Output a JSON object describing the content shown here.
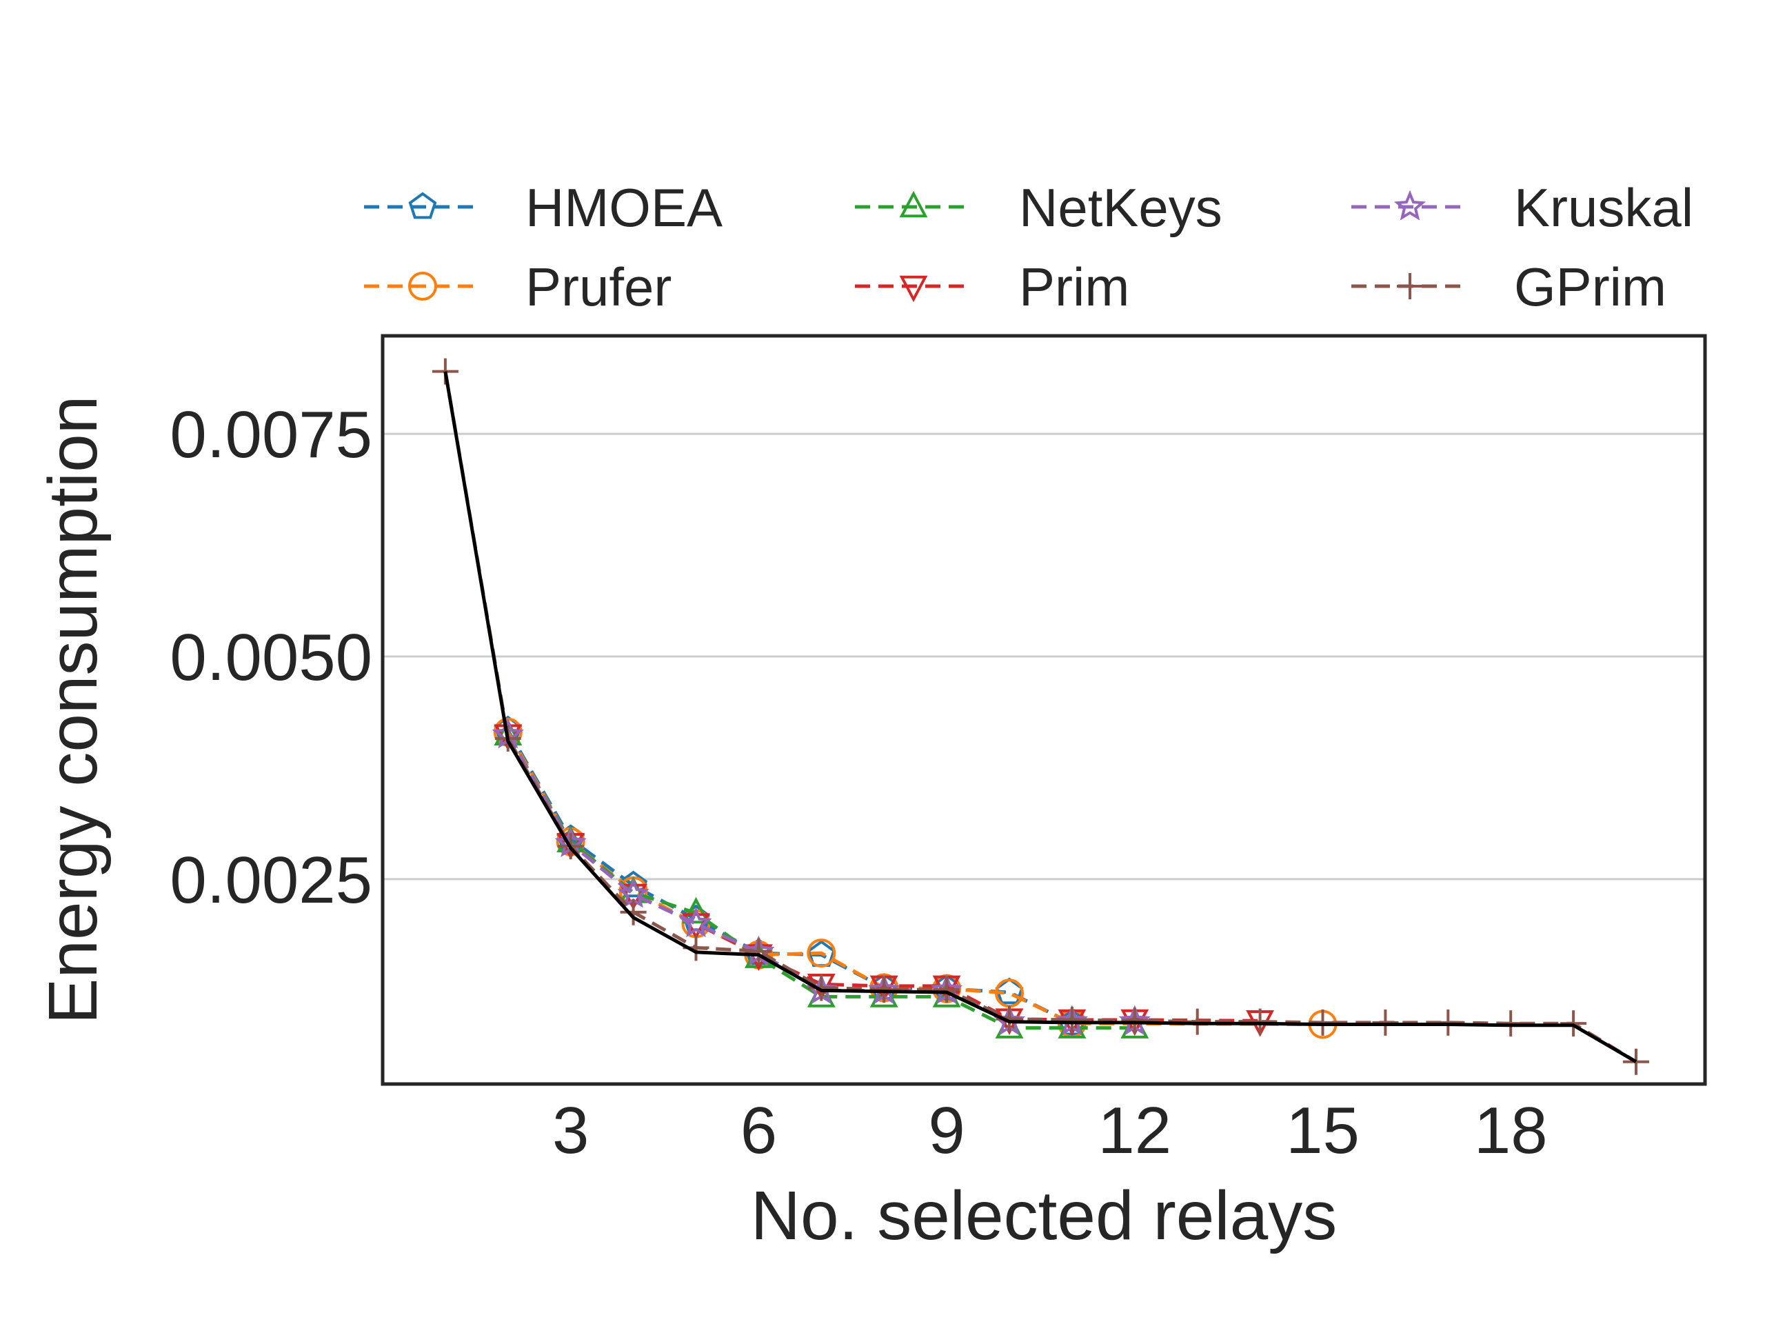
{
  "chart_data": {
    "type": "line",
    "xlabel": "No. selected relays",
    "ylabel": "Energy consumption",
    "xlim": [
      0.0,
      21.1
    ],
    "ylim": [
      0.0002,
      0.0086
    ],
    "xticks": [
      3,
      6,
      9,
      12,
      15,
      18
    ],
    "xtick_labels": [
      "3",
      "6",
      "9",
      "12",
      "15",
      "18"
    ],
    "yticks": [
      0.0025,
      0.005,
      0.0075
    ],
    "ytick_labels": [
      "0.0025",
      "0.0050",
      "0.0075"
    ],
    "grid": "horizontal",
    "legend": {
      "position": "top",
      "columns": 3
    },
    "series": [
      {
        "name": "HMOEA",
        "color": "#1f77b4",
        "marker": "pentagon",
        "dash": true,
        "x": [
          2,
          3,
          4,
          5,
          6,
          7,
          8,
          9,
          10,
          11
        ],
        "y": [
          0.00417,
          0.00295,
          0.00243,
          0.00205,
          0.00167,
          0.00165,
          0.00128,
          0.00127,
          0.00123,
          0.00088
        ]
      },
      {
        "name": "Prufer",
        "color": "#ff7f0e",
        "marker": "circle",
        "dash": true,
        "x": [
          2,
          3,
          4,
          5,
          6,
          7,
          8,
          9,
          10,
          11,
          15
        ],
        "y": [
          0.00415,
          0.00292,
          0.00237,
          0.002,
          0.00165,
          0.00167,
          0.00128,
          0.00127,
          0.00122,
          0.00088,
          0.00087
        ]
      },
      {
        "name": "NetKeys",
        "color": "#2ca02c",
        "marker": "triangle-up",
        "dash": true,
        "x": [
          2,
          3,
          4,
          5,
          6,
          7,
          8,
          9,
          10,
          11,
          12
        ],
        "y": [
          0.00412,
          0.00292,
          0.00235,
          0.00212,
          0.00162,
          0.00118,
          0.00118,
          0.00118,
          0.00083,
          0.00083,
          0.00083
        ]
      },
      {
        "name": "Prim",
        "color": "#d62728",
        "marker": "triangle-down",
        "dash": true,
        "x": [
          2,
          3,
          4,
          5,
          6,
          7,
          8,
          9,
          10,
          11,
          12,
          14
        ],
        "y": [
          0.00412,
          0.0029,
          0.00233,
          0.002,
          0.00165,
          0.00132,
          0.0013,
          0.0013,
          0.00093,
          0.00092,
          0.00092,
          0.00091
        ]
      },
      {
        "name": "Kruskal",
        "color": "#9467bd",
        "marker": "star",
        "dash": true,
        "x": [
          2,
          3,
          4,
          5,
          6,
          7,
          8,
          9,
          10,
          11,
          12
        ],
        "y": [
          0.00412,
          0.0029,
          0.00233,
          0.002,
          0.00168,
          0.00125,
          0.00125,
          0.00125,
          0.0009,
          0.0009,
          0.0009
        ]
      },
      {
        "name": "GPrim",
        "color": "#8c564b",
        "marker": "plus",
        "dash": true,
        "x": [
          1,
          2,
          3,
          4,
          5,
          6,
          7,
          8,
          9,
          10,
          11,
          12,
          13,
          14,
          15,
          16,
          17,
          18,
          19,
          20
        ],
        "y": [
          0.0082,
          0.00408,
          0.00287,
          0.00213,
          0.00173,
          0.00169,
          0.00128,
          0.00126,
          0.00126,
          0.00093,
          0.00092,
          0.00091,
          0.0009,
          0.0009,
          0.00089,
          0.00089,
          0.00089,
          0.00088,
          0.00088,
          0.00045
        ]
      },
      {
        "name": "",
        "color": "#000000",
        "marker": "none",
        "dash": false,
        "x": [
          1,
          2,
          3,
          4,
          5,
          6,
          7,
          8,
          9,
          10,
          11,
          12,
          13,
          14,
          15,
          16,
          17,
          18,
          19,
          20
        ],
        "y": [
          0.0082,
          0.00405,
          0.00285,
          0.00207,
          0.00168,
          0.00165,
          0.00125,
          0.00124,
          0.00123,
          0.0009,
          0.00089,
          0.00089,
          0.00088,
          0.00088,
          0.00087,
          0.00087,
          0.00087,
          0.00086,
          0.00086,
          0.00045
        ]
      }
    ]
  }
}
